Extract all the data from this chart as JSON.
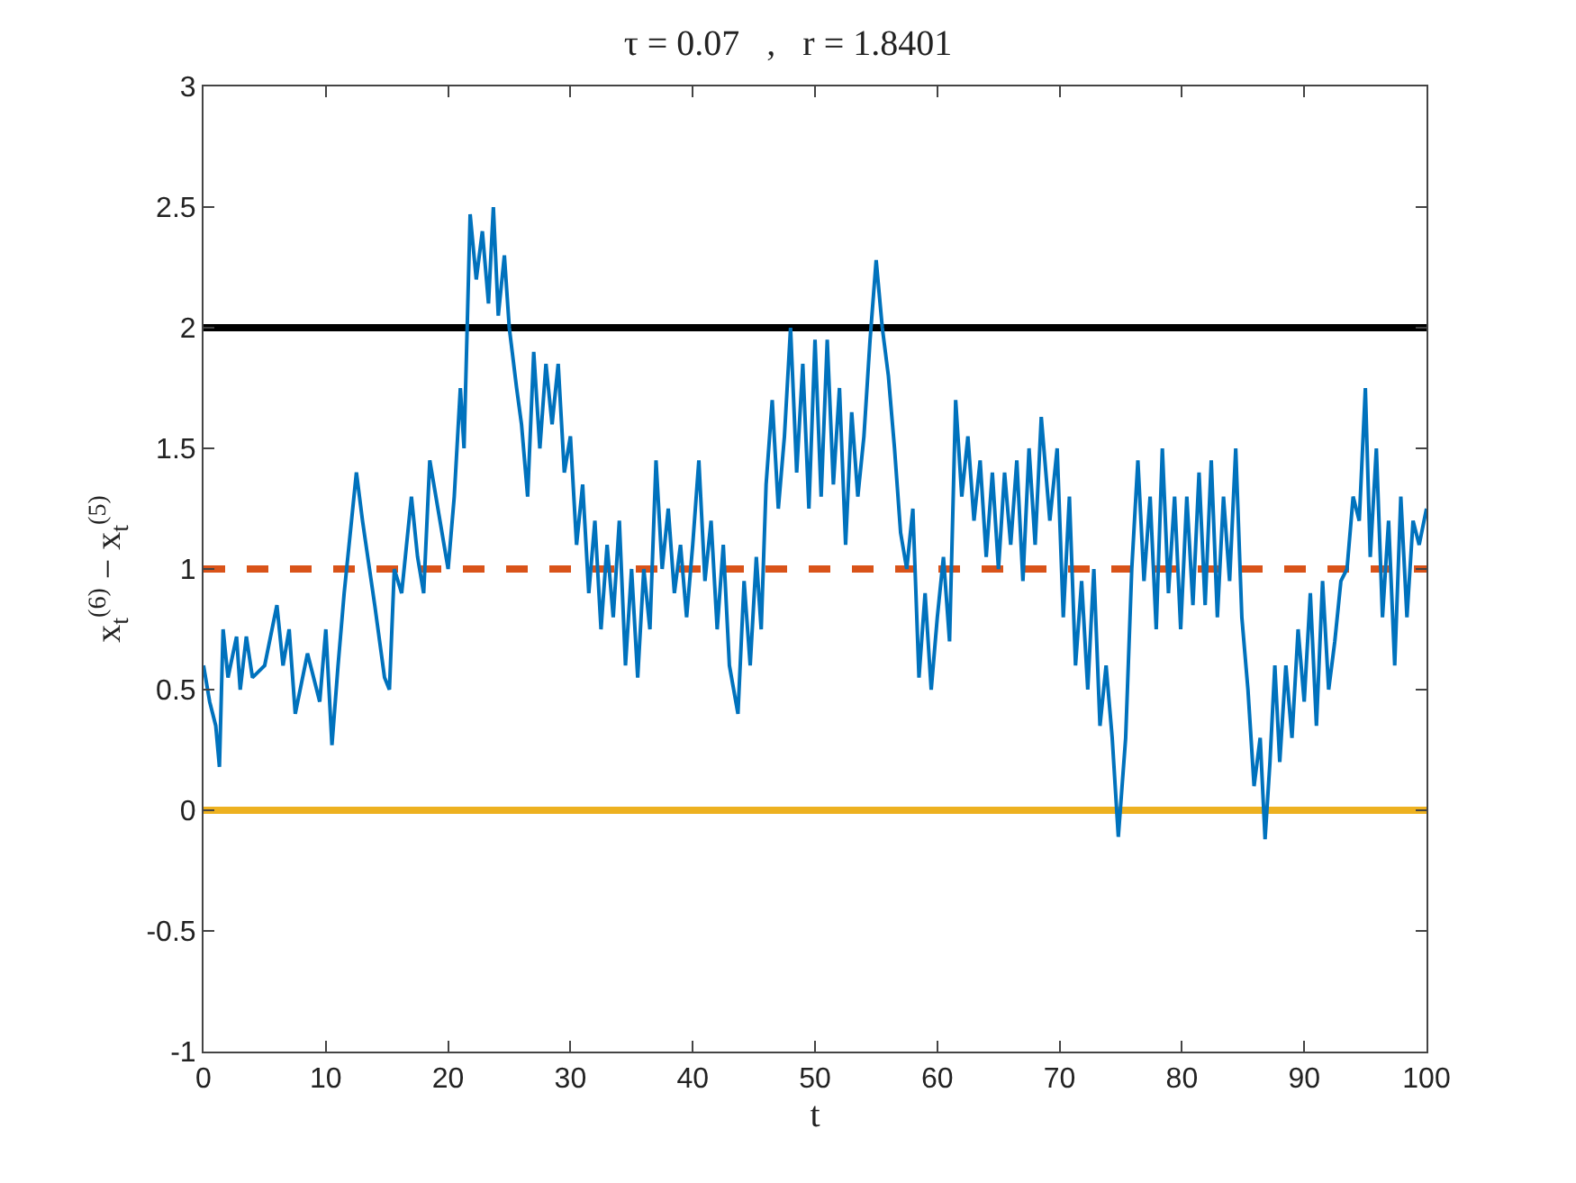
{
  "chart_data": {
    "type": "line",
    "title": "τ = 0.07   ,   r = 1.8401",
    "xlabel": "t",
    "ylabel": "x$_{t}$$^{(6)}$ − x$_{t}$$^{(5)}$",
    "xlim": [
      0,
      100
    ],
    "ylim": [
      -1,
      3
    ],
    "xticks": [
      0,
      10,
      20,
      30,
      40,
      50,
      60,
      70,
      80,
      90,
      100
    ],
    "yticks": [
      -1,
      -0.5,
      0,
      0.5,
      1,
      1.5,
      2,
      2.5,
      3
    ],
    "grid": false,
    "marker": "none",
    "line_style": "solid",
    "series": [
      {
        "color": "#0072bd",
        "x": [
          0,
          0.5,
          1,
          1.3,
          1.6,
          2,
          2.7,
          3,
          3.5,
          4,
          5,
          6,
          6.5,
          7,
          7.5,
          8.5,
          9.5,
          10,
          10.5,
          11,
          11.5,
          12.5,
          13,
          14,
          14.8,
          15.2,
          15.6,
          16.2,
          17,
          17.5,
          18,
          18.5,
          19.5,
          20,
          20.5,
          21,
          21.3,
          21.8,
          22.3,
          22.8,
          23.3,
          23.7,
          24.1,
          24.6,
          25,
          25.6,
          26,
          26.5,
          27,
          27.5,
          28,
          28.5,
          29,
          29.5,
          30,
          30.5,
          31,
          31.5,
          32,
          32.5,
          33,
          33.5,
          34,
          34.5,
          35,
          35.5,
          36,
          36.5,
          37,
          37.5,
          38,
          38.5,
          39,
          39.5,
          40,
          40.5,
          41,
          41.5,
          42,
          42.5,
          43,
          43.7,
          44.2,
          44.7,
          45.2,
          45.6,
          46,
          46.5,
          47,
          47.5,
          48,
          48.5,
          49,
          49.5,
          50,
          50.5,
          51,
          51.5,
          52,
          52.5,
          53,
          53.5,
          54,
          54.5,
          55,
          55.5,
          56,
          56.5,
          57,
          57.5,
          58,
          58.5,
          59,
          59.5,
          60,
          60.5,
          61,
          61.5,
          62,
          62.5,
          63,
          63.5,
          64,
          64.5,
          65,
          65.5,
          66,
          66.5,
          67,
          67.5,
          68,
          68.5,
          69.2,
          69.8,
          70.3,
          70.8,
          71.3,
          71.8,
          72.3,
          72.8,
          73.3,
          73.8,
          74.3,
          74.8,
          75.4,
          75.9,
          76.4,
          76.9,
          77.4,
          77.9,
          78.4,
          78.9,
          79.4,
          79.9,
          80.4,
          80.9,
          81.4,
          81.9,
          82.4,
          82.9,
          83.4,
          83.9,
          84.4,
          84.9,
          85.4,
          85.9,
          86.4,
          86.8,
          87.2,
          87.6,
          88,
          88.5,
          89,
          89.5,
          90,
          90.5,
          91,
          91.5,
          92,
          92.5,
          93,
          93.5,
          94,
          94.5,
          95,
          95.4,
          95.9,
          96.4,
          96.9,
          97.4,
          97.9,
          98.4,
          98.9,
          99.4,
          100
        ],
        "values": [
          0.6,
          0.45,
          0.35,
          0.18,
          0.75,
          0.55,
          0.72,
          0.5,
          0.72,
          0.55,
          0.6,
          0.85,
          0.6,
          0.75,
          0.4,
          0.65,
          0.45,
          0.75,
          0.27,
          0.6,
          0.9,
          1.4,
          1.2,
          0.85,
          0.55,
          0.5,
          1.0,
          0.9,
          1.3,
          1.05,
          0.9,
          1.45,
          1.15,
          1.0,
          1.3,
          1.75,
          1.5,
          2.47,
          2.2,
          2.4,
          2.1,
          2.5,
          2.05,
          2.3,
          2.0,
          1.75,
          1.6,
          1.3,
          1.9,
          1.5,
          1.85,
          1.6,
          1.85,
          1.4,
          1.55,
          1.1,
          1.35,
          0.9,
          1.2,
          0.75,
          1.1,
          0.8,
          1.2,
          0.6,
          1.0,
          0.55,
          1.0,
          0.75,
          1.45,
          1.0,
          1.25,
          0.9,
          1.1,
          0.8,
          1.1,
          1.45,
          0.95,
          1.2,
          0.75,
          1.1,
          0.6,
          0.4,
          0.95,
          0.6,
          1.05,
          0.75,
          1.35,
          1.7,
          1.25,
          1.55,
          2.0,
          1.4,
          1.85,
          1.25,
          1.95,
          1.3,
          1.95,
          1.35,
          1.75,
          1.1,
          1.65,
          1.3,
          1.55,
          1.95,
          2.28,
          2.0,
          1.8,
          1.5,
          1.15,
          1.0,
          1.25,
          0.55,
          0.9,
          0.5,
          0.8,
          1.05,
          0.7,
          1.7,
          1.3,
          1.55,
          1.2,
          1.45,
          1.05,
          1.4,
          1.0,
          1.4,
          1.1,
          1.45,
          0.95,
          1.5,
          1.1,
          1.63,
          1.2,
          1.5,
          0.8,
          1.3,
          0.6,
          0.95,
          0.5,
          1.0,
          0.35,
          0.6,
          0.3,
          -0.11,
          0.3,
          1.0,
          1.45,
          0.95,
          1.3,
          0.75,
          1.5,
          0.9,
          1.3,
          0.75,
          1.3,
          0.85,
          1.4,
          0.85,
          1.45,
          0.8,
          1.3,
          0.95,
          1.5,
          0.8,
          0.5,
          0.1,
          0.3,
          -0.12,
          0.2,
          0.6,
          0.2,
          0.6,
          0.3,
          0.75,
          0.45,
          0.9,
          0.35,
          0.95,
          0.5,
          0.7,
          0.95,
          1.0,
          1.3,
          1.2,
          1.75,
          1.05,
          1.5,
          0.8,
          1.2,
          0.6,
          1.3,
          0.8,
          1.2,
          1.1,
          1.25
        ]
      }
    ],
    "ref_lines": [
      {
        "axis": "y",
        "value": 2,
        "color": "#000000",
        "line_style": "solid"
      },
      {
        "axis": "y",
        "value": 1,
        "color": "#d95319",
        "line_style": "dashed"
      },
      {
        "axis": "y",
        "value": 0,
        "color": "#edb120",
        "line_style": "solid"
      }
    ]
  }
}
